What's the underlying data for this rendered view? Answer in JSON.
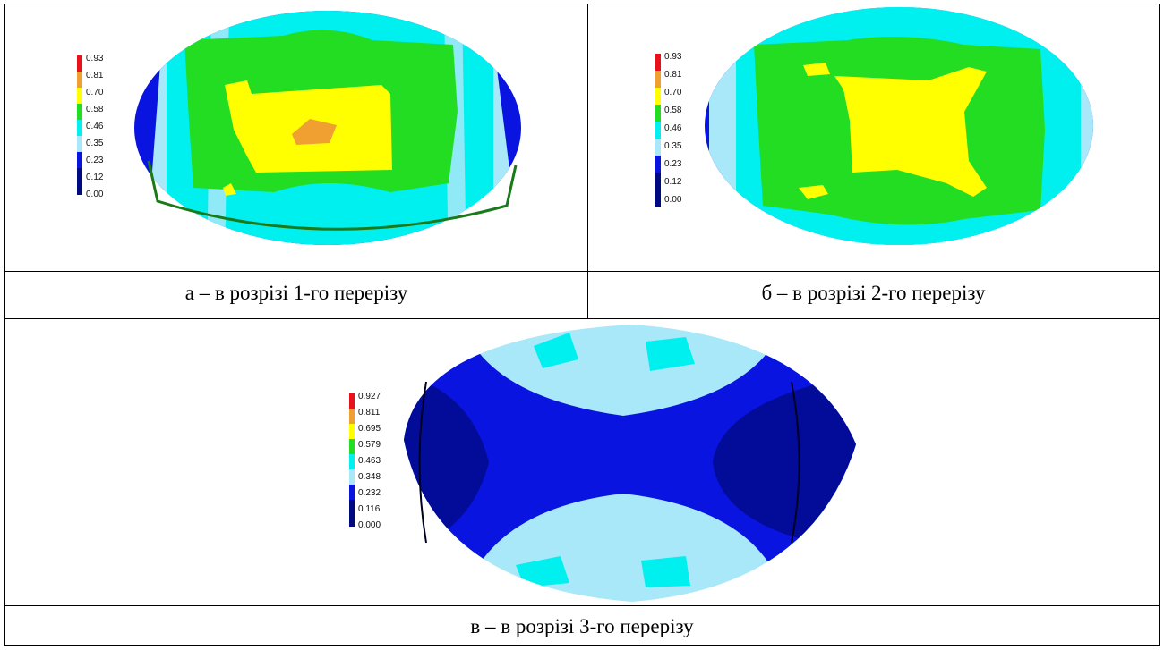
{
  "figures": [
    {
      "caption": "а – в розрізі 1-го перерізу",
      "legend_labels": [
        "0.93",
        "0.81",
        "0.70",
        "0.58",
        "0.46",
        "0.35",
        "0.23",
        "0.12",
        "0.00"
      ]
    },
    {
      "caption": "б – в розрізі 2-го  перерізу",
      "legend_labels": [
        "0.93",
        "0.81",
        "0.70",
        "0.58",
        "0.46",
        "0.35",
        "0.23",
        "0.12",
        "0.00"
      ]
    },
    {
      "caption": "в – в розрізі 3-го перерізу",
      "legend_labels": [
        "0.927",
        "0.811",
        "0.695",
        "0.579",
        "0.463",
        "0.348",
        "0.232",
        "0.116",
        "0.000"
      ]
    }
  ],
  "colors": {
    "red": "#e8121c",
    "orange": "#f0a030",
    "yellow": "#ffff00",
    "green": "#22dd22",
    "cyan": "#00f0f0",
    "lightblue": "#a8e8f8",
    "blue": "#0a14e0",
    "darkblue": "#000a80"
  }
}
